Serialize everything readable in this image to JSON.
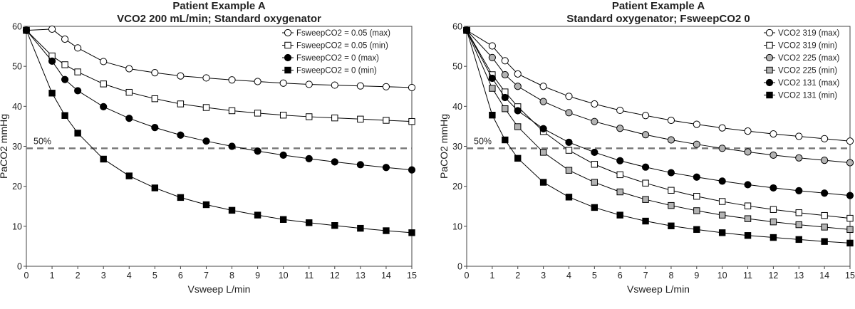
{
  "chart_data": [
    {
      "type": "line",
      "title": "Patient Example A",
      "subtitle": "VCO2 200 mL/min; Standard oxygenator",
      "xlabel": "Vsweep L/min",
      "ylabel": "PaCO2 mmHg",
      "xlim": [
        0,
        15
      ],
      "ylim": [
        0,
        60
      ],
      "xticks": [
        0,
        1,
        2,
        3,
        4,
        5,
        6,
        7,
        8,
        9,
        10,
        11,
        12,
        13,
        14,
        15
      ],
      "yticks": [
        0,
        10,
        20,
        30,
        40,
        50,
        60
      ],
      "grid": false,
      "legend_position": "top-right",
      "reference_line": {
        "y": 29.5,
        "label": "50%",
        "style": "dashed"
      },
      "x": [
        0,
        1,
        1.5,
        2,
        3,
        4,
        5,
        6,
        7,
        8,
        9,
        10,
        11,
        12,
        13,
        14,
        15
      ],
      "series": [
        {
          "name": "FsweepCO2 = 0.05 (max)",
          "marker": "circle",
          "fill": "white",
          "values": [
            59,
            59.3,
            56.8,
            54.6,
            51.2,
            49.4,
            48.4,
            47.6,
            47.1,
            46.6,
            46.2,
            45.8,
            45.5,
            45.3,
            45.1,
            44.9,
            44.7
          ]
        },
        {
          "name": "FsweepCO2 = 0.05 (min)",
          "marker": "square",
          "fill": "white",
          "values": [
            59,
            52.6,
            50.4,
            48.6,
            45.6,
            43.5,
            41.9,
            40.6,
            39.7,
            38.9,
            38.3,
            37.8,
            37.4,
            37.1,
            36.8,
            36.5,
            36.2
          ]
        },
        {
          "name": "FsweepCO2 = 0 (max)",
          "marker": "circle",
          "fill": "black",
          "values": [
            59,
            51.3,
            46.7,
            43.9,
            39.9,
            37.0,
            34.7,
            32.8,
            31.3,
            30.0,
            28.8,
            27.8,
            26.9,
            26.1,
            25.4,
            24.7,
            24.1
          ]
        },
        {
          "name": "FsweepCO2 = 0 (min)",
          "marker": "square",
          "fill": "black",
          "values": [
            59,
            43.3,
            37.7,
            33.3,
            26.8,
            22.6,
            19.6,
            17.2,
            15.4,
            14.0,
            12.8,
            11.7,
            10.9,
            10.2,
            9.5,
            8.9,
            8.4
          ]
        }
      ]
    },
    {
      "type": "line",
      "title": "Patient Example A",
      "subtitle": "Standard oxygenator; FsweepCO2 0",
      "xlabel": "Vsweep L/min",
      "ylabel": "PaCO2 mmHg",
      "xlim": [
        0,
        15
      ],
      "ylim": [
        0,
        60
      ],
      "xticks": [
        0,
        1,
        2,
        3,
        4,
        5,
        6,
        7,
        8,
        9,
        10,
        11,
        12,
        13,
        14,
        15
      ],
      "yticks": [
        0,
        10,
        20,
        30,
        40,
        50,
        60
      ],
      "grid": false,
      "legend_position": "top-right",
      "reference_line": {
        "y": 29.5,
        "label": "50%",
        "style": "dashed"
      },
      "x": [
        0,
        1,
        1.5,
        2,
        3,
        4,
        5,
        6,
        7,
        8,
        9,
        10,
        11,
        12,
        13,
        14,
        15
      ],
      "series": [
        {
          "name": "VCO2 319 (max)",
          "marker": "circle",
          "fill": "white",
          "values": [
            59,
            55.1,
            51.4,
            48.1,
            45.0,
            42.5,
            40.6,
            39.0,
            37.7,
            36.5,
            35.5,
            34.6,
            33.8,
            33.1,
            32.5,
            31.9,
            31.3
          ]
        },
        {
          "name": "VCO2 319 (min)",
          "marker": "square",
          "fill": "white",
          "values": [
            59,
            47.9,
            43.6,
            39.9,
            33.7,
            29.0,
            25.5,
            22.9,
            20.8,
            19.0,
            17.5,
            16.2,
            15.1,
            14.2,
            13.4,
            12.7,
            12.0
          ]
        },
        {
          "name": "VCO2 225 (max)",
          "marker": "circle",
          "fill": "gray",
          "values": [
            59,
            52.2,
            47.9,
            45.0,
            41.2,
            38.4,
            36.2,
            34.5,
            32.9,
            31.6,
            30.5,
            29.5,
            28.6,
            27.8,
            27.1,
            26.5,
            25.9
          ]
        },
        {
          "name": "VCO2 225 (min)",
          "marker": "square",
          "fill": "gray",
          "values": [
            59,
            44.5,
            39.4,
            34.9,
            28.5,
            24.0,
            21.0,
            18.6,
            16.7,
            15.2,
            13.9,
            12.8,
            11.9,
            11.1,
            10.4,
            9.8,
            9.2
          ]
        },
        {
          "name": "VCO2 131 (max)",
          "marker": "circle",
          "fill": "black",
          "values": [
            59,
            47.0,
            42.2,
            38.9,
            34.4,
            31.0,
            28.5,
            26.4,
            24.8,
            23.4,
            22.3,
            21.3,
            20.4,
            19.6,
            18.9,
            18.3,
            17.7
          ]
        },
        {
          "name": "VCO2 131 (min)",
          "marker": "square",
          "fill": "black",
          "values": [
            59,
            37.8,
            31.6,
            27.0,
            21.0,
            17.3,
            14.7,
            12.8,
            11.3,
            10.1,
            9.2,
            8.4,
            7.7,
            7.2,
            6.7,
            6.2,
            5.8
          ]
        }
      ]
    }
  ]
}
